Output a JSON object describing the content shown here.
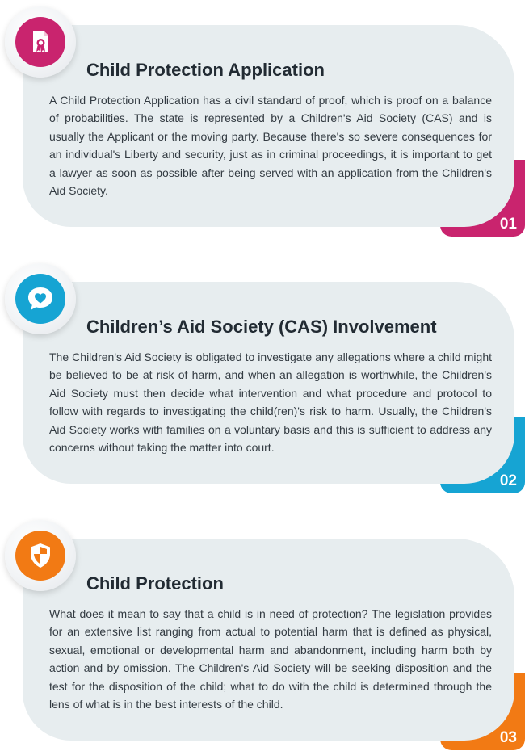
{
  "colors": {
    "section1": "#c9246e",
    "section2": "#16a4d3",
    "section3": "#f27a14",
    "card_bg": "#e7edef",
    "title": "#222b33",
    "text": "#333b42"
  },
  "sections": [
    {
      "number": "01",
      "icon": "certificate-document-icon",
      "title": "Child Protection Application",
      "body": "A Child Protection Application has a civil standard of proof, which is proof on a balance of probabilities. The state is represented by a Children's Aid Society (CAS) and is usually the Applicant or the moving party. Because there's so severe consequences for an individual's Liberty and security, just as in criminal proceedings, it is important to get a lawyer as soon as possible after being served with an application from the Children's Aid Society."
    },
    {
      "number": "02",
      "icon": "heart-chat-bubble-icon",
      "title": "Children’s Aid Society (CAS) Involvement",
      "body": "The Children's Aid Society is obligated to investigate any allegations where a child might be believed to be at risk of harm, and when an allegation is worthwhile, the Children's Aid Society must then decide what intervention and what procedure and protocol to follow with regards to investigating the child(ren)'s risk to harm. Usually, the Children's Aid Society works with families on a voluntary basis and this is sufficient to address any concerns without taking the matter into court."
    },
    {
      "number": "03",
      "icon": "shield-icon",
      "title": "Child Protection",
      "body": "What does it mean to say that a child is in need of protection? The legislation provides for an extensive list ranging from actual to potential harm that is defined as physical, sexual, emotional or developmental harm and abandonment, including harm both by action and by omission. The Children's Aid Society will be seeking disposition and the test for the disposition of the child; what to do with the child is determined through the lens of what is in the best interests of the child."
    }
  ]
}
